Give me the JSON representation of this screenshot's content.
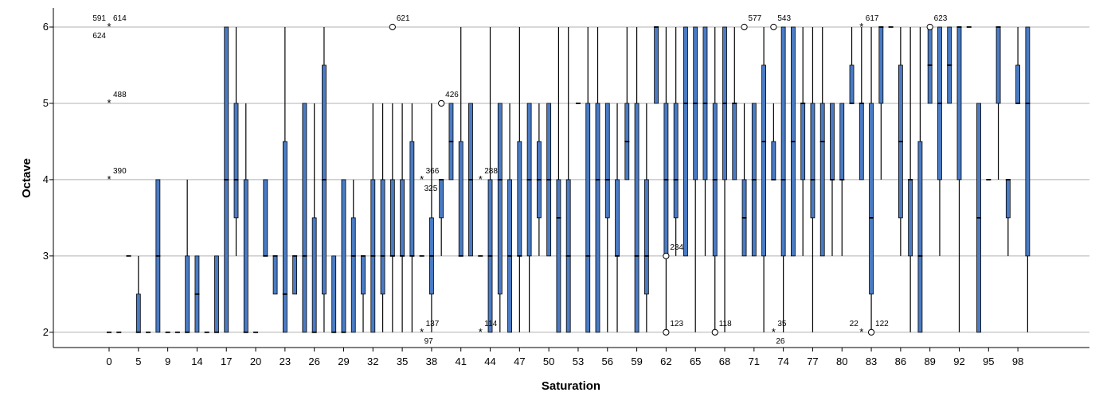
{
  "chart_data": {
    "type": "boxplot",
    "xlabel": "Saturation",
    "ylabel": "Octave",
    "ylim": [
      1.8,
      6.25
    ],
    "y_ticks": [
      2,
      3,
      4,
      5,
      6
    ],
    "x_tick_labels": [
      "0",
      "5",
      "9",
      "14",
      "17",
      "20",
      "23",
      "26",
      "29",
      "32",
      "35",
      "38",
      "41",
      "44",
      "47",
      "50",
      "53",
      "56",
      "59",
      "62",
      "65",
      "68",
      "71",
      "74",
      "77",
      "80",
      "83",
      "86",
      "89",
      "92",
      "95",
      "98"
    ],
    "grid": "horizontal",
    "box_color": "#4a7bc4",
    "boxes": [
      {
        "x": 0.0,
        "median": 2
      },
      {
        "x": 1.0,
        "median": 2
      },
      {
        "x": 2.0,
        "median": 3
      },
      {
        "x": 3.0,
        "q1": 2,
        "median": 2,
        "q3": 2.5,
        "whisker_low": 2,
        "whisker_high": 3
      },
      {
        "x": 4.0,
        "median": 2
      },
      {
        "x": 5.0,
        "q1": 2,
        "median": 3,
        "q3": 4,
        "whisker_low": 2,
        "whisker_high": 4
      },
      {
        "x": 6.0,
        "median": 2
      },
      {
        "x": 7.0,
        "median": 2
      },
      {
        "x": 8.0,
        "q1": 2,
        "median": 2,
        "q3": 3,
        "whisker_low": 2,
        "whisker_high": 4
      },
      {
        "x": 9.0,
        "q1": 2,
        "median": 2.5,
        "q3": 3,
        "whisker_low": 2,
        "whisker_high": 3
      },
      {
        "x": 10.0,
        "median": 2
      },
      {
        "x": 11.0,
        "q1": 2,
        "median": 2,
        "q3": 3,
        "whisker_low": 2,
        "whisker_high": 3
      },
      {
        "x": 12.0,
        "q1": 2,
        "median": 4,
        "q3": 6,
        "whisker_low": 2,
        "whisker_high": 6
      },
      {
        "x": 13.0,
        "q1": 3.5,
        "median": 4,
        "q3": 5,
        "whisker_low": 3,
        "whisker_high": 6
      },
      {
        "x": 14.0,
        "q1": 2,
        "median": 2,
        "q3": 4,
        "whisker_low": 2,
        "whisker_high": 5
      },
      {
        "x": 15.0,
        "median": 2
      },
      {
        "x": 16.0,
        "q1": 3,
        "median": 3,
        "q3": 4,
        "whisker_low": 3,
        "whisker_high": 4
      },
      {
        "x": 17.0,
        "q1": 2.5,
        "median": 3,
        "q3": 3,
        "whisker_low": 2.5,
        "whisker_high": 3
      },
      {
        "x": 18.0,
        "q1": 2,
        "median": 2.5,
        "q3": 4.5,
        "whisker_low": 2,
        "whisker_high": 6
      },
      {
        "x": 19.0,
        "q1": 2.5,
        "median": 3,
        "q3": 3,
        "whisker_low": 2.5,
        "whisker_high": 3
      },
      {
        "x": 20.0,
        "q1": 2,
        "median": 3,
        "q3": 5,
        "whisker_low": 2,
        "whisker_high": 5
      },
      {
        "x": 21.0,
        "q1": 2,
        "median": 2,
        "q3": 3.5,
        "whisker_low": 2,
        "whisker_high": 5
      },
      {
        "x": 22.0,
        "q1": 2.5,
        "median": 4,
        "q3": 5.5,
        "whisker_low": 2,
        "whisker_high": 6
      },
      {
        "x": 23.0,
        "q1": 2,
        "median": 2,
        "q3": 3,
        "whisker_low": 2,
        "whisker_high": 3
      },
      {
        "x": 24.0,
        "q1": 2,
        "median": 2,
        "q3": 4,
        "whisker_low": 2,
        "whisker_high": 4
      },
      {
        "x": 25.0,
        "q1": 2,
        "median": 3,
        "q3": 3.5,
        "whisker_low": 2,
        "whisker_high": 4
      },
      {
        "x": 26.0,
        "q1": 2.5,
        "median": 3,
        "q3": 3,
        "whisker_low": 2,
        "whisker_high": 3
      },
      {
        "x": 27.0,
        "q1": 2,
        "median": 3,
        "q3": 4,
        "whisker_low": 2,
        "whisker_high": 5
      },
      {
        "x": 28.0,
        "q1": 2.5,
        "median": 3,
        "q3": 4,
        "whisker_low": 2,
        "whisker_high": 5
      },
      {
        "x": 29.0,
        "q1": 3,
        "median": 3,
        "q3": 4,
        "whisker_low": 2,
        "whisker_high": 5
      },
      {
        "x": 30.0,
        "q1": 3,
        "median": 3,
        "q3": 4,
        "whisker_low": 2,
        "whisker_high": 5
      },
      {
        "x": 31.0,
        "q1": 3,
        "median": 3,
        "q3": 4.5,
        "whisker_low": 2,
        "whisker_high": 5
      },
      {
        "x": 32.0,
        "median": 3
      },
      {
        "x": 33.0,
        "q1": 2.5,
        "median": 3,
        "q3": 3.5,
        "whisker_low": 2,
        "whisker_high": 5
      },
      {
        "x": 34.0,
        "q1": 3.5,
        "median": 4,
        "q3": 4,
        "whisker_low": 3,
        "whisker_high": 4
      },
      {
        "x": 35.0,
        "q1": 4,
        "median": 4.5,
        "q3": 5,
        "whisker_low": 4,
        "whisker_high": 5
      },
      {
        "x": 36.0,
        "q1": 3,
        "median": 3,
        "q3": 4.5,
        "whisker_low": 3,
        "whisker_high": 6
      },
      {
        "x": 37.0,
        "q1": 3,
        "median": 4,
        "q3": 5,
        "whisker_low": 3,
        "whisker_high": 5
      },
      {
        "x": 38.0,
        "median": 3
      },
      {
        "x": 39.0,
        "q1": 2,
        "median": 3,
        "q3": 4,
        "whisker_low": 2,
        "whisker_high": 6
      },
      {
        "x": 40.0,
        "q1": 2.5,
        "median": 4,
        "q3": 5,
        "whisker_low": 2,
        "whisker_high": 5
      },
      {
        "x": 41.0,
        "q1": 2,
        "median": 3,
        "q3": 4,
        "whisker_low": 2,
        "whisker_high": 5
      },
      {
        "x": 42.0,
        "q1": 3,
        "median": 3,
        "q3": 4.5,
        "whisker_low": 2,
        "whisker_high": 6
      },
      {
        "x": 43.0,
        "q1": 3,
        "median": 4,
        "q3": 5,
        "whisker_low": 2,
        "whisker_high": 5
      },
      {
        "x": 44.0,
        "q1": 3.5,
        "median": 4,
        "q3": 4.5,
        "whisker_low": 3,
        "whisker_high": 5
      },
      {
        "x": 45.0,
        "q1": 3,
        "median": 4,
        "q3": 5,
        "whisker_low": 3,
        "whisker_high": 5
      },
      {
        "x": 46.0,
        "q1": 2,
        "median": 3.5,
        "q3": 4,
        "whisker_low": 2,
        "whisker_high": 6
      },
      {
        "x": 47.0,
        "q1": 2,
        "median": 3,
        "q3": 4,
        "whisker_low": 2,
        "whisker_high": 6
      },
      {
        "x": 48.0,
        "median": 5
      },
      {
        "x": 49.0,
        "q1": 2,
        "median": 3,
        "q3": 5,
        "whisker_low": 2,
        "whisker_high": 6
      },
      {
        "x": 50.0,
        "q1": 2,
        "median": 4,
        "q3": 5,
        "whisker_low": 2,
        "whisker_high": 6
      },
      {
        "x": 51.0,
        "q1": 3.5,
        "median": 4,
        "q3": 5,
        "whisker_low": 2,
        "whisker_high": 5
      },
      {
        "x": 52.0,
        "q1": 3,
        "median": 3,
        "q3": 4,
        "whisker_low": 2,
        "whisker_high": 5
      },
      {
        "x": 53.0,
        "q1": 4,
        "median": 4.5,
        "q3": 5,
        "whisker_low": 4,
        "whisker_high": 6
      },
      {
        "x": 54.0,
        "q1": 2,
        "median": 3,
        "q3": 5,
        "whisker_low": 2,
        "whisker_high": 6
      },
      {
        "x": 55.0,
        "q1": 2.5,
        "median": 3,
        "q3": 4,
        "whisker_low": 2,
        "whisker_high": 5
      },
      {
        "x": 56.0,
        "q1": 5,
        "median": 6,
        "q3": 6,
        "whisker_low": 5,
        "whisker_high": 6
      },
      {
        "x": 57.0,
        "q1": 3,
        "median": 4,
        "q3": 5,
        "whisker_low": 2,
        "whisker_high": 6
      },
      {
        "x": 58.0,
        "q1": 3.5,
        "median": 4,
        "q3": 5,
        "whisker_low": 3,
        "whisker_high": 6
      },
      {
        "x": 59.0,
        "q1": 3,
        "median": 5,
        "q3": 6,
        "whisker_low": 3,
        "whisker_high": 6
      },
      {
        "x": 60.0,
        "q1": 4,
        "median": 5,
        "q3": 6,
        "whisker_low": 2,
        "whisker_high": 6
      },
      {
        "x": 61.0,
        "q1": 4,
        "median": 5,
        "q3": 6,
        "whisker_low": 3,
        "whisker_high": 6
      },
      {
        "x": 62.0,
        "q1": 3,
        "median": 4,
        "q3": 5,
        "whisker_low": 2,
        "whisker_high": 6
      },
      {
        "x": 63.0,
        "q1": 4,
        "median": 5,
        "q3": 6,
        "whisker_low": 2,
        "whisker_high": 6
      },
      {
        "x": 64.0,
        "q1": 4,
        "median": 5,
        "q3": 5,
        "whisker_low": 4,
        "whisker_high": 6
      },
      {
        "x": 65.0,
        "q1": 3,
        "median": 3.5,
        "q3": 4,
        "whisker_low": 3,
        "whisker_high": 5
      },
      {
        "x": 66.0,
        "q1": 3,
        "median": 4,
        "q3": 5,
        "whisker_low": 3,
        "whisker_high": 5
      },
      {
        "x": 67.0,
        "q1": 3,
        "median": 4.5,
        "q3": 5.5,
        "whisker_low": 2,
        "whisker_high": 6
      },
      {
        "x": 68.0,
        "q1": 4,
        "median": 4,
        "q3": 4.5,
        "whisker_low": 4,
        "whisker_high": 5
      },
      {
        "x": 69.0,
        "q1": 3,
        "median": 4,
        "q3": 6,
        "whisker_low": 2,
        "whisker_high": 6
      },
      {
        "x": 70.0,
        "q1": 3,
        "median": 4.5,
        "q3": 6,
        "whisker_low": 3,
        "whisker_high": 6
      },
      {
        "x": 71.0,
        "q1": 4,
        "median": 5,
        "q3": 5,
        "whisker_low": 3,
        "whisker_high": 6
      },
      {
        "x": 72.0,
        "q1": 3.5,
        "median": 4,
        "q3": 5,
        "whisker_low": 2,
        "whisker_high": 6
      },
      {
        "x": 73.0,
        "q1": 3,
        "median": 4.5,
        "q3": 5,
        "whisker_low": 3,
        "whisker_high": 6
      },
      {
        "x": 74.0,
        "q1": 4,
        "median": 4,
        "q3": 5,
        "whisker_low": 3,
        "whisker_high": 5
      },
      {
        "x": 75.0,
        "q1": 4,
        "median": 4,
        "q3": 5,
        "whisker_low": 3,
        "whisker_high": 5
      },
      {
        "x": 76.0,
        "q1": 5,
        "median": 5,
        "q3": 5.5,
        "whisker_low": 5,
        "whisker_high": 6
      },
      {
        "x": 77.0,
        "q1": 4,
        "median": 5,
        "q3": 5,
        "whisker_low": 4,
        "whisker_high": 6
      },
      {
        "x": 78.0,
        "q1": 2.5,
        "median": 3.5,
        "q3": 5,
        "whisker_low": 2,
        "whisker_high": 6
      },
      {
        "x": 79.0,
        "q1": 5,
        "median": 6,
        "q3": 6,
        "whisker_low": 4,
        "whisker_high": 6
      },
      {
        "x": 80.0,
        "median": 6
      },
      {
        "x": 81.0,
        "q1": 3.5,
        "median": 4.5,
        "q3": 5.5,
        "whisker_low": 3,
        "whisker_high": 6
      },
      {
        "x": 82.0,
        "q1": 3,
        "median": 4,
        "q3": 4,
        "whisker_low": 2,
        "whisker_high": 6
      },
      {
        "x": 83.0,
        "q1": 2,
        "median": 3,
        "q3": 4.5,
        "whisker_low": 2,
        "whisker_high": 6
      },
      {
        "x": 84.0,
        "q1": 5,
        "median": 5.5,
        "q3": 6,
        "whisker_low": 5,
        "whisker_high": 6
      },
      {
        "x": 85.0,
        "q1": 4,
        "median": 5,
        "q3": 6,
        "whisker_low": 3,
        "whisker_high": 6
      },
      {
        "x": 86.0,
        "q1": 5,
        "median": 5.5,
        "q3": 6,
        "whisker_low": 5,
        "whisker_high": 6
      },
      {
        "x": 87.0,
        "q1": 4,
        "median": 6,
        "q3": 6,
        "whisker_low": 2,
        "whisker_high": 6
      },
      {
        "x": 88.0,
        "median": 6
      },
      {
        "x": 89.0,
        "q1": 2,
        "median": 3.5,
        "q3": 5,
        "whisker_low": 2,
        "whisker_high": 5
      },
      {
        "x": 90.0,
        "median": 4
      },
      {
        "x": 91.0,
        "q1": 5,
        "median": 6,
        "q3": 6,
        "whisker_low": 4,
        "whisker_high": 6
      },
      {
        "x": 92.0,
        "q1": 3.5,
        "median": 4,
        "q3": 4,
        "whisker_low": 3,
        "whisker_high": 4
      },
      {
        "x": 93.0,
        "q1": 5,
        "median": 5,
        "q3": 5.5,
        "whisker_low": 5,
        "whisker_high": 6
      },
      {
        "x": 94.0,
        "q1": 3,
        "median": 5,
        "q3": 6,
        "whisker_low": 2,
        "whisker_high": 6
      }
    ],
    "outliers": [
      {
        "x": 0.0,
        "y": 6,
        "symbol": "star",
        "labels": [
          {
            "text": "591",
            "pos": "ul"
          },
          {
            "text": "614",
            "pos": "ur"
          },
          {
            "text": "624",
            "pos": "ll"
          }
        ]
      },
      {
        "x": 0.0,
        "y": 5,
        "symbol": "star",
        "labels": [
          {
            "text": "488",
            "pos": "ur"
          }
        ]
      },
      {
        "x": 0.0,
        "y": 4,
        "symbol": "star",
        "labels": [
          {
            "text": "390",
            "pos": "ur"
          }
        ]
      },
      {
        "x": 29.0,
        "y": 6,
        "symbol": "circle",
        "labels": [
          {
            "text": "621",
            "pos": "ur"
          }
        ]
      },
      {
        "x": 32.0,
        "y": 4,
        "symbol": "star",
        "labels": [
          {
            "text": "366",
            "pos": "ur"
          },
          {
            "text": "325",
            "pos": "lr"
          }
        ]
      },
      {
        "x": 32.0,
        "y": 2,
        "symbol": "star",
        "labels": [
          {
            "text": "137",
            "pos": "ur"
          },
          {
            "text": "97",
            "pos": "lr"
          }
        ]
      },
      {
        "x": 34.0,
        "y": 5,
        "symbol": "circle",
        "labels": [
          {
            "text": "426",
            "pos": "ur"
          }
        ]
      },
      {
        "x": 38.0,
        "y": 4,
        "symbol": "star",
        "labels": [
          {
            "text": "288",
            "pos": "ur"
          }
        ]
      },
      {
        "x": 38.0,
        "y": 2,
        "symbol": "star",
        "labels": [
          {
            "text": "114",
            "pos": "ur"
          }
        ]
      },
      {
        "x": 57.0,
        "y": 3,
        "symbol": "circle",
        "labels": [
          {
            "text": "234",
            "pos": "ur"
          }
        ]
      },
      {
        "x": 57.0,
        "y": 2,
        "symbol": "circle",
        "labels": [
          {
            "text": "123",
            "pos": "ur"
          }
        ]
      },
      {
        "x": 62.0,
        "y": 2,
        "symbol": "circle",
        "labels": [
          {
            "text": "118",
            "pos": "ur"
          }
        ]
      },
      {
        "x": 65.0,
        "y": 6,
        "symbol": "circle",
        "labels": [
          {
            "text": "577",
            "pos": "ur"
          }
        ]
      },
      {
        "x": 68.0,
        "y": 6,
        "symbol": "circle",
        "labels": [
          {
            "text": "543",
            "pos": "ur"
          }
        ]
      },
      {
        "x": 68.0,
        "y": 2,
        "symbol": "star",
        "labels": [
          {
            "text": "35",
            "pos": "ur"
          },
          {
            "text": "26",
            "pos": "lr"
          }
        ]
      },
      {
        "x": 77.0,
        "y": 6,
        "symbol": "star",
        "labels": [
          {
            "text": "617",
            "pos": "ur"
          }
        ]
      },
      {
        "x": 77.0,
        "y": 2,
        "symbol": "star",
        "labels": [
          {
            "text": "22",
            "pos": "ul"
          }
        ]
      },
      {
        "x": 78.0,
        "y": 2,
        "symbol": "circle",
        "labels": [
          {
            "text": "122",
            "pos": "ur"
          }
        ]
      },
      {
        "x": 84.0,
        "y": 6,
        "symbol": "circle",
        "labels": [
          {
            "text": "623",
            "pos": "ur"
          }
        ]
      }
    ]
  }
}
